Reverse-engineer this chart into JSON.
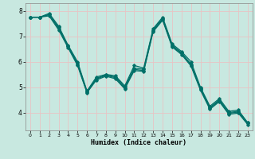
{
  "xlabel": "Humidex (Indice chaleur)",
  "xlim": [
    -0.5,
    23.5
  ],
  "ylim": [
    3.3,
    8.3
  ],
  "yticks": [
    4,
    5,
    6,
    7,
    8
  ],
  "xticks": [
    0,
    1,
    2,
    3,
    4,
    5,
    6,
    7,
    8,
    9,
    10,
    11,
    12,
    13,
    14,
    15,
    16,
    17,
    18,
    19,
    20,
    21,
    22,
    23
  ],
  "bg_color": "#c8e8e0",
  "grid_color": "#e8c4c4",
  "line_color": "#007068",
  "lines": [
    [
      7.75,
      7.75,
      7.9,
      7.4,
      6.65,
      6.0,
      4.85,
      5.4,
      5.5,
      5.45,
      5.05,
      5.85,
      5.75,
      7.3,
      7.75,
      6.7,
      6.4,
      6.0,
      5.0,
      4.25,
      4.55,
      4.05,
      4.1,
      3.6
    ],
    [
      7.75,
      7.75,
      7.85,
      7.35,
      6.6,
      5.95,
      4.82,
      5.35,
      5.48,
      5.4,
      5.0,
      5.75,
      5.7,
      7.25,
      7.7,
      6.65,
      6.35,
      5.9,
      4.95,
      4.2,
      4.5,
      4.0,
      4.05,
      3.6
    ],
    [
      7.75,
      7.75,
      7.85,
      7.3,
      6.6,
      5.9,
      4.8,
      5.32,
      5.46,
      5.37,
      4.97,
      5.7,
      5.65,
      7.22,
      7.67,
      6.62,
      6.32,
      5.87,
      4.92,
      4.17,
      4.47,
      3.97,
      4.02,
      3.57
    ],
    [
      7.75,
      7.75,
      7.8,
      7.25,
      6.55,
      5.85,
      4.78,
      5.28,
      5.43,
      5.33,
      4.93,
      5.65,
      5.62,
      7.18,
      7.63,
      6.58,
      6.28,
      5.83,
      4.88,
      4.13,
      4.43,
      3.93,
      3.98,
      3.53
    ]
  ]
}
